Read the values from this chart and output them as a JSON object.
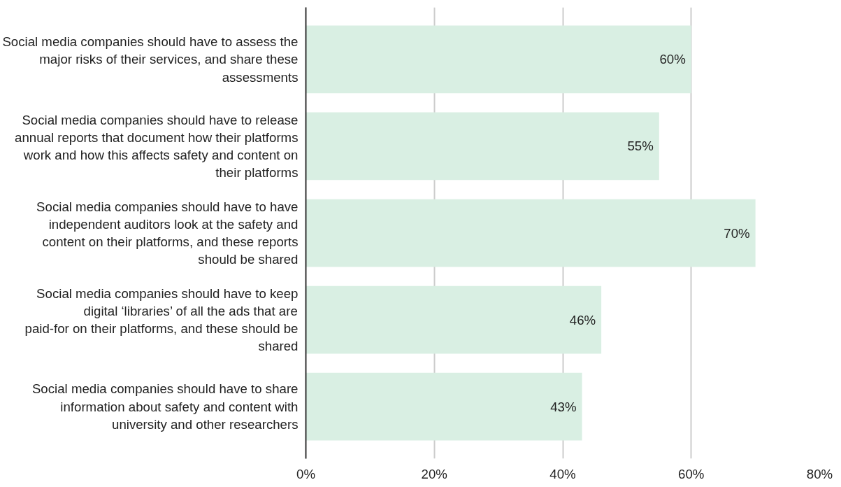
{
  "chart_data": {
    "type": "bar",
    "orientation": "horizontal",
    "categories": [
      "Social media companies should have to assess the major risks of their services, and share these assessments",
      "Social media companies should have to release annual reports that document how their platforms work and how this affects safety and content on their platforms",
      "Social media companies should have to have independent auditors look at the safety and content on their platforms, and these reports should be shared",
      "Social media companies should have to keep digital ‘libraries’ of all the ads that are paid-for on their platforms, and these should be shared",
      "Social media companies should have to share information about safety and content with university and other researchers"
    ],
    "values": [
      60,
      55,
      70,
      46,
      43
    ],
    "value_labels": [
      "60%",
      "55%",
      "70%",
      "46%",
      "43%"
    ],
    "color": "#d9efe3",
    "xlim": [
      0,
      80
    ],
    "xticks": [
      {
        "value": 0,
        "label": "0%"
      },
      {
        "value": 20,
        "label": "20%"
      },
      {
        "value": 40,
        "label": "40%"
      },
      {
        "value": 60,
        "label": "60%"
      },
      {
        "value": 80,
        "label": "80%"
      }
    ],
    "grid": "x"
  }
}
